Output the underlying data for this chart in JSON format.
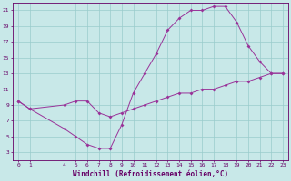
{
  "xlabel": "Windchill (Refroidissement éolien,°C)",
  "x_data": [
    0,
    1,
    4,
    5,
    6,
    7,
    8,
    9,
    10,
    11,
    12,
    13,
    14,
    15,
    16,
    17,
    18,
    19,
    20,
    21,
    22,
    23
  ],
  "y_upper": [
    9.5,
    8.5,
    6.0,
    5.0,
    4.0,
    3.5,
    3.5,
    6.5,
    10.5,
    13.0,
    15.5,
    18.5,
    20.0,
    21.0,
    21.0,
    21.5,
    21.5,
    19.5,
    16.5,
    14.5,
    13.0,
    13.0
  ],
  "y_lower": [
    9.5,
    8.5,
    9.0,
    9.5,
    9.5,
    8.0,
    7.5,
    8.0,
    8.5,
    9.0,
    9.5,
    10.0,
    10.5,
    10.5,
    11.0,
    11.0,
    11.5,
    12.0,
    12.0,
    12.5,
    13.0,
    13.0
  ],
  "line_color": "#993399",
  "bg_color": "#c8e8e8",
  "grid_color": "#99cccc",
  "axis_color": "#660066",
  "xlim": [
    -0.5,
    23.5
  ],
  "ylim": [
    2.0,
    22.0
  ],
  "yticks": [
    3,
    5,
    7,
    9,
    11,
    13,
    15,
    17,
    19,
    21
  ],
  "xticks": [
    0,
    1,
    4,
    5,
    6,
    7,
    8,
    9,
    10,
    11,
    12,
    13,
    14,
    15,
    16,
    17,
    18,
    19,
    20,
    21,
    22,
    23
  ],
  "tick_fontsize": 4.5,
  "label_fontsize": 5.5,
  "marker_size": 2.0,
  "linewidth": 0.7
}
